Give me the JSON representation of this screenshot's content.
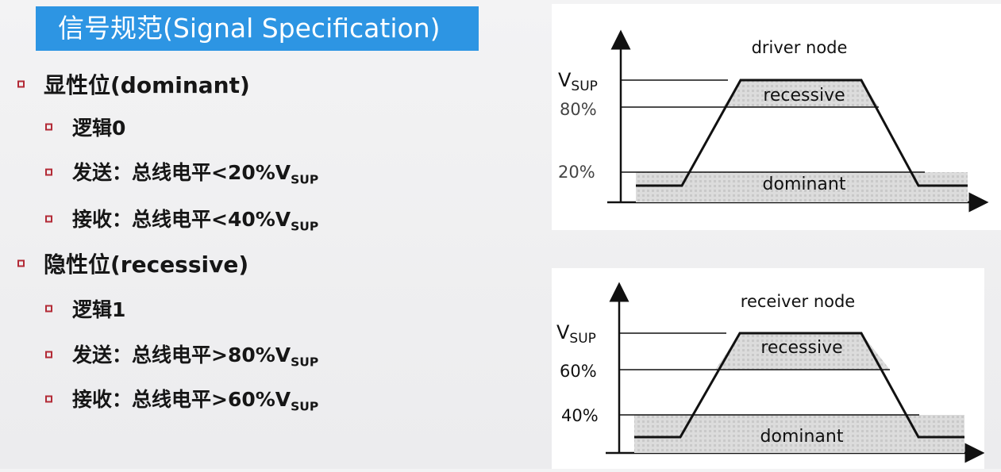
{
  "title": "信号规范(Signal Specification)",
  "bullets": [
    {
      "level": 1,
      "text": "显性位(dominant)",
      "sub": ""
    },
    {
      "level": 2,
      "text": "逻辑0",
      "sub": ""
    },
    {
      "level": 2,
      "text": "发送：总线电平<20%V",
      "sub": "SUP"
    },
    {
      "level": 2,
      "text": "接收：总线电平<40%V",
      "sub": "SUP"
    },
    {
      "level": 1,
      "text": "隐性位(recessive)",
      "sub": ""
    },
    {
      "level": 2,
      "text": "逻辑1",
      "sub": ""
    },
    {
      "level": 2,
      "text": "发送：总线电平>80%V",
      "sub": "SUP"
    },
    {
      "level": 2,
      "text": "接收：总线电平>60%V",
      "sub": "SUP"
    }
  ],
  "diagrams": [
    {
      "title": "driver node",
      "vsup_main": "V",
      "vsup_sub": "SUP",
      "upper_pct": "80%",
      "lower_pct": "20%",
      "upper_value": 80,
      "lower_value": 20,
      "recessive_label": "recessive",
      "dominant_label": "dominant"
    },
    {
      "title": "receiver node",
      "vsup_main": "V",
      "vsup_sub": "SUP",
      "upper_pct": "60%",
      "lower_pct": "40%",
      "upper_value": 60,
      "lower_value": 40,
      "recessive_label": "recessive",
      "dominant_label": "dominant"
    }
  ],
  "colors": {
    "title_bg": "#2d95e3",
    "bullet_box": "#b32a36",
    "region_fill": "#d4d4d4"
  }
}
